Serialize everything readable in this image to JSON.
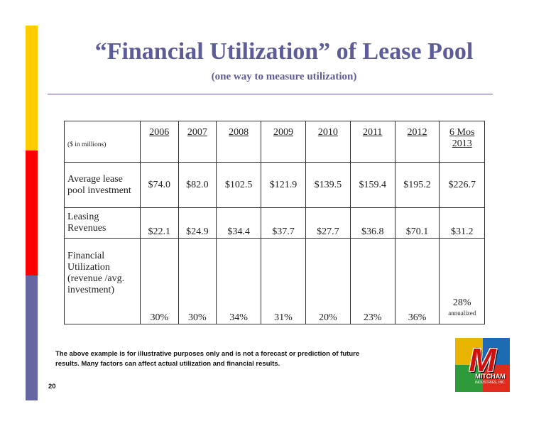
{
  "slide": {
    "title": "“Financial Utilization” of Lease Pool",
    "subtitle": "(one way to measure utilization)",
    "page_number": "20"
  },
  "table": {
    "units_label": "($ in millions)",
    "years": [
      "2006",
      "2007",
      "2008",
      "2009",
      "2010",
      "2011",
      "2012"
    ],
    "last_col": {
      "line1": "6 Mos",
      "line2": "2013"
    },
    "rows": {
      "investment": {
        "label": "Average lease pool investment",
        "values": [
          "$74.0",
          "$82.0",
          "$102.5",
          "$121.9",
          "$139.5",
          "$159.4",
          "$195.2",
          "$226.7"
        ]
      },
      "revenues": {
        "label": "Leasing Revenues",
        "values": [
          "$22.1",
          "$24.9",
          "$34.4",
          "$37.7",
          "$27.7",
          "$36.8",
          "$70.1",
          "$31.2"
        ]
      },
      "utilization": {
        "label": "Financial Utilization (revenue /avg. investment)",
        "values": [
          "30%",
          "30%",
          "34%",
          "31%",
          "20%",
          "23%",
          "36%",
          "28%"
        ],
        "last_note": "annualized"
      }
    }
  },
  "disclaimer": "The above example is for illustrative purposes only and is not a forecast or prediction of future results.  Many factors can affect actual utilization and financial results.",
  "logo": {
    "mark": "M",
    "name": "MITCHAM",
    "sub": "INDUSTRIES, INC."
  },
  "colors": {
    "accent": "#5c5c99",
    "bar_yellow": "#ffcc00",
    "bar_red": "#ff0000",
    "bar_blue": "#6666a3"
  }
}
